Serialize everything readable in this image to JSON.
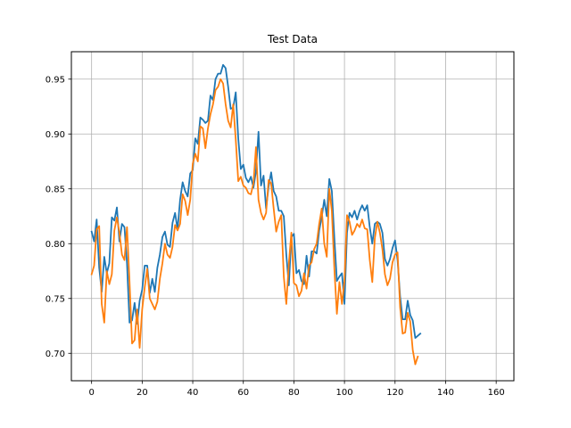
{
  "chart_data": {
    "type": "line",
    "title": "Test Data",
    "xlabel": "",
    "ylabel": "",
    "xlim": [
      -8,
      167
    ],
    "ylim": [
      0.675,
      0.975
    ],
    "xticks": [
      0,
      20,
      40,
      60,
      80,
      100,
      120,
      140,
      160
    ],
    "yticks": [
      0.7,
      0.75,
      0.8,
      0.85,
      0.9,
      0.95
    ],
    "xtick_labels": [
      "0",
      "20",
      "40",
      "60",
      "80",
      "100",
      "120",
      "140",
      "160"
    ],
    "ytick_labels": [
      "0.70",
      "0.75",
      "0.80",
      "0.85",
      "0.90",
      "0.95"
    ],
    "grid": true,
    "series": [
      {
        "color": "#1f77b4",
        "x_start": 0,
        "values": [
          0.811,
          0.802,
          0.822,
          0.778,
          0.756,
          0.788,
          0.773,
          0.782,
          0.824,
          0.821,
          0.833,
          0.802,
          0.818,
          0.815,
          0.782,
          0.728,
          0.73,
          0.746,
          0.727,
          0.748,
          0.758,
          0.78,
          0.78,
          0.755,
          0.768,
          0.756,
          0.778,
          0.79,
          0.806,
          0.811,
          0.799,
          0.797,
          0.819,
          0.828,
          0.813,
          0.84,
          0.856,
          0.848,
          0.843,
          0.864,
          0.867,
          0.896,
          0.891,
          0.915,
          0.913,
          0.91,
          0.912,
          0.935,
          0.931,
          0.95,
          0.955,
          0.955,
          0.963,
          0.96,
          0.943,
          0.923,
          0.924,
          0.938,
          0.896,
          0.868,
          0.872,
          0.86,
          0.856,
          0.861,
          0.851,
          0.866,
          0.902,
          0.853,
          0.862,
          0.832,
          0.852,
          0.865,
          0.848,
          0.843,
          0.83,
          0.83,
          0.825,
          0.79,
          0.762,
          0.806,
          0.809,
          0.773,
          0.776,
          0.766,
          0.763,
          0.789,
          0.77,
          0.793,
          0.793,
          0.791,
          0.812,
          0.824,
          0.84,
          0.825,
          0.859,
          0.848,
          0.805,
          0.766,
          0.77,
          0.773,
          0.745,
          0.81,
          0.828,
          0.824,
          0.83,
          0.822,
          0.83,
          0.835,
          0.83,
          0.835,
          0.815,
          0.8,
          0.818,
          0.82,
          0.818,
          0.81,
          0.786,
          0.78,
          0.786,
          0.796,
          0.803,
          0.785,
          0.752,
          0.731,
          0.731,
          0.748,
          0.735,
          0.73,
          0.714,
          0.716,
          0.718
        ],
        "values_note_x_count": 0
      },
      {
        "color": "#ff7f0e",
        "x_start": 0,
        "values": [
          0.772,
          0.78,
          0.813,
          0.816,
          0.745,
          0.728,
          0.775,
          0.763,
          0.772,
          0.812,
          0.824,
          0.81,
          0.79,
          0.785,
          0.815,
          0.765,
          0.709,
          0.712,
          0.74,
          0.705,
          0.74,
          0.76,
          0.777,
          0.75,
          0.745,
          0.74,
          0.747,
          0.768,
          0.782,
          0.8,
          0.79,
          0.787,
          0.797,
          0.817,
          0.812,
          0.818,
          0.845,
          0.839,
          0.826,
          0.84,
          0.873,
          0.882,
          0.875,
          0.907,
          0.905,
          0.887,
          0.905,
          0.918,
          0.927,
          0.94,
          0.943,
          0.95,
          0.946,
          0.927,
          0.912,
          0.906,
          0.927,
          0.895,
          0.857,
          0.861,
          0.853,
          0.851,
          0.846,
          0.845,
          0.855,
          0.888,
          0.84,
          0.828,
          0.822,
          0.828,
          0.858,
          0.855,
          0.832,
          0.811,
          0.82,
          0.826,
          0.77,
          0.745,
          0.782,
          0.81,
          0.764,
          0.762,
          0.752,
          0.757,
          0.773,
          0.759,
          0.78,
          0.783,
          0.795,
          0.8,
          0.818,
          0.832,
          0.8,
          0.788,
          0.85,
          0.83,
          0.777,
          0.736,
          0.765,
          0.745,
          0.766,
          0.826,
          0.82,
          0.808,
          0.812,
          0.818,
          0.815,
          0.822,
          0.814,
          0.813,
          0.785,
          0.765,
          0.805,
          0.82,
          0.81,
          0.795,
          0.772,
          0.762,
          0.768,
          0.783,
          0.79,
          0.792,
          0.742,
          0.718,
          0.719,
          0.737,
          0.729,
          0.703,
          0.69,
          0.697
        ],
        "values_note_x_count": 0
      }
    ]
  }
}
